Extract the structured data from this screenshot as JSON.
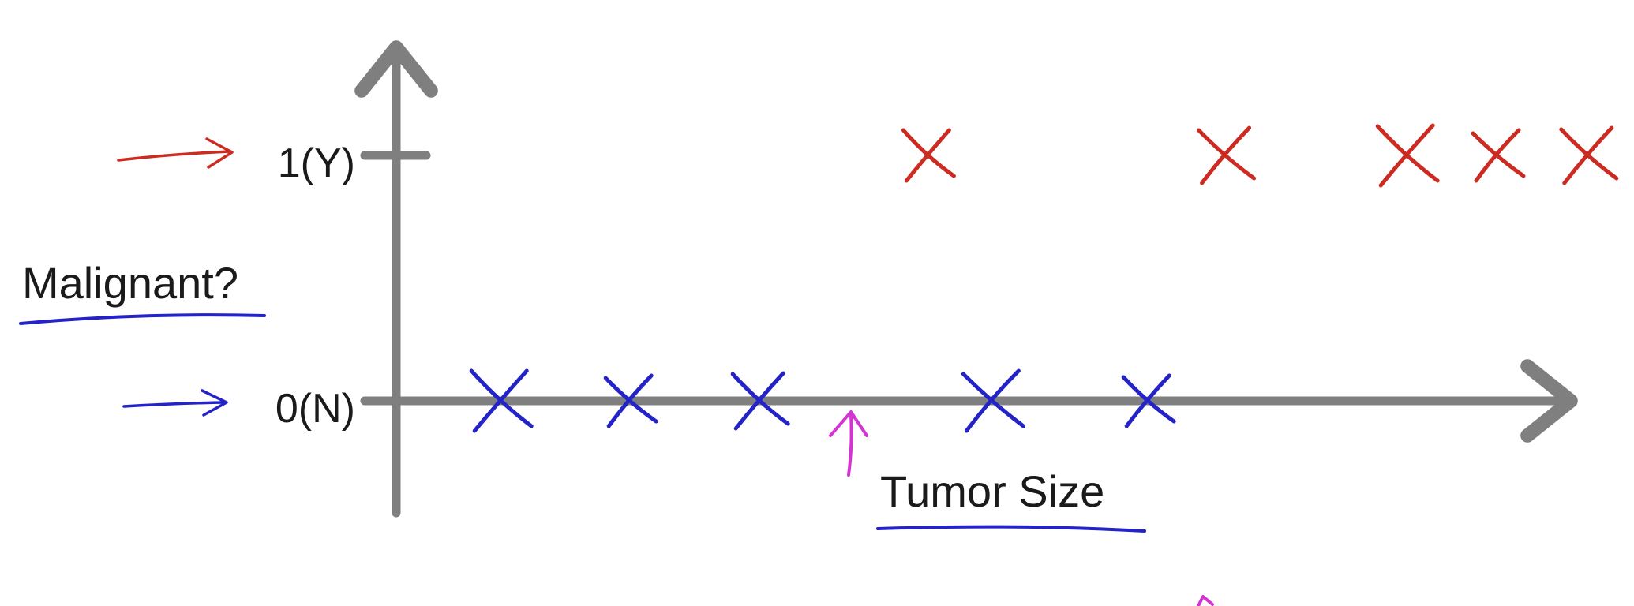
{
  "chart_data": {
    "type": "scatter",
    "title": "",
    "xlabel": "Tumor Size",
    "ylabel": "Malignant?",
    "y_ticks": [
      {
        "value": 1,
        "label": "1(Y)"
      },
      {
        "value": 0,
        "label": "0(N)"
      }
    ],
    "ylim": [
      -0.45,
      1.55
    ],
    "xlim": [
      0,
      11
    ],
    "grid": false,
    "legend": "none",
    "series": [
      {
        "color": "#cc2b22",
        "marker": "x",
        "points": [
          {
            "x": 4.1,
            "y": 1
          },
          {
            "x": 6.4,
            "y": 1
          },
          {
            "x": 7.8,
            "y": 1
          },
          {
            "x": 8.5,
            "y": 1
          },
          {
            "x": 9.2,
            "y": 1
          }
        ]
      },
      {
        "color": "#2323c8",
        "marker": "x",
        "points": [
          {
            "x": 0.8,
            "y": 0
          },
          {
            "x": 1.8,
            "y": 0
          },
          {
            "x": 2.8,
            "y": 0
          },
          {
            "x": 4.6,
            "y": 0
          },
          {
            "x": 5.8,
            "y": 0
          }
        ]
      }
    ],
    "annotations": [
      {
        "type": "arrow",
        "color": "#cc2b22",
        "points_to_y": 1
      },
      {
        "type": "arrow",
        "color": "#2323c8",
        "points_to_y": 0
      },
      {
        "type": "arrow",
        "color": "#d334d3",
        "points_to_x": 3.1
      }
    ],
    "colors": {
      "axis": "#7f7f7f",
      "label_underline": "#2323c8"
    }
  }
}
